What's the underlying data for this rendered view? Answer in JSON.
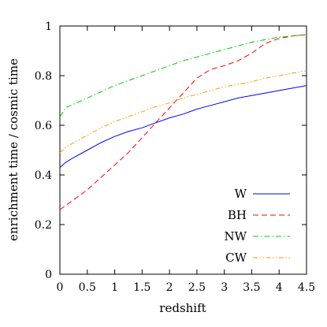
{
  "chart_data": {
    "type": "line",
    "title": "",
    "xlabel": "redshift",
    "ylabel": "enrichment time / cosmic time",
    "xlim": [
      0,
      4.5
    ],
    "ylim": [
      0,
      1
    ],
    "xticks": [
      "0",
      "0.5",
      "1",
      "1.5",
      "2",
      "2.5",
      "3",
      "3.5",
      "4",
      "4.5"
    ],
    "yticks": [
      "0",
      "0.2",
      "0.4",
      "0.6",
      "0.8",
      "1"
    ],
    "grid": false,
    "legend_position": "bottom-right",
    "series": [
      {
        "name": "W",
        "color": "#0000ff",
        "dash": "solid",
        "x": [
          0,
          0.1,
          0.25,
          0.5,
          0.75,
          1.0,
          1.25,
          1.5,
          1.75,
          2.0,
          2.25,
          2.5,
          2.75,
          3.0,
          3.25,
          3.5,
          3.75,
          4.0,
          4.25,
          4.5
        ],
        "y": [
          0.43,
          0.45,
          0.47,
          0.5,
          0.53,
          0.555,
          0.575,
          0.59,
          0.61,
          0.63,
          0.645,
          0.665,
          0.68,
          0.695,
          0.71,
          0.72,
          0.73,
          0.74,
          0.75,
          0.76
        ]
      },
      {
        "name": "BH",
        "color": "#ff0000",
        "dash": "dashed",
        "x": [
          0,
          0.25,
          0.5,
          0.75,
          1.0,
          1.25,
          1.5,
          1.75,
          2.0,
          2.25,
          2.5,
          2.75,
          3.0,
          3.25,
          3.5,
          3.75,
          4.0,
          4.25,
          4.5
        ],
        "y": [
          0.26,
          0.3,
          0.34,
          0.39,
          0.44,
          0.49,
          0.55,
          0.61,
          0.67,
          0.73,
          0.79,
          0.825,
          0.84,
          0.86,
          0.89,
          0.93,
          0.95,
          0.96,
          0.965
        ]
      },
      {
        "name": "NW",
        "color": "#00cc00",
        "dash": "dashdot",
        "x": [
          0,
          0.05,
          0.1,
          0.25,
          0.5,
          0.75,
          1.0,
          1.25,
          1.5,
          1.75,
          2.0,
          2.25,
          2.5,
          2.75,
          3.0,
          3.25,
          3.5,
          3.75,
          4.0,
          4.25,
          4.5
        ],
        "y": [
          0.635,
          0.65,
          0.67,
          0.685,
          0.71,
          0.735,
          0.76,
          0.78,
          0.8,
          0.82,
          0.84,
          0.86,
          0.875,
          0.89,
          0.905,
          0.92,
          0.935,
          0.945,
          0.955,
          0.96,
          0.965
        ]
      },
      {
        "name": "CW",
        "color": "#ff9900",
        "dash": "dashdotdot",
        "x": [
          0,
          0.1,
          0.25,
          0.5,
          0.75,
          1.0,
          1.25,
          1.5,
          1.75,
          2.0,
          2.25,
          2.5,
          2.75,
          3.0,
          3.25,
          3.5,
          3.75,
          4.0,
          4.25,
          4.5
        ],
        "y": [
          0.49,
          0.51,
          0.53,
          0.56,
          0.59,
          0.615,
          0.635,
          0.655,
          0.675,
          0.69,
          0.71,
          0.725,
          0.74,
          0.755,
          0.765,
          0.775,
          0.79,
          0.8,
          0.81,
          0.82
        ]
      }
    ]
  }
}
